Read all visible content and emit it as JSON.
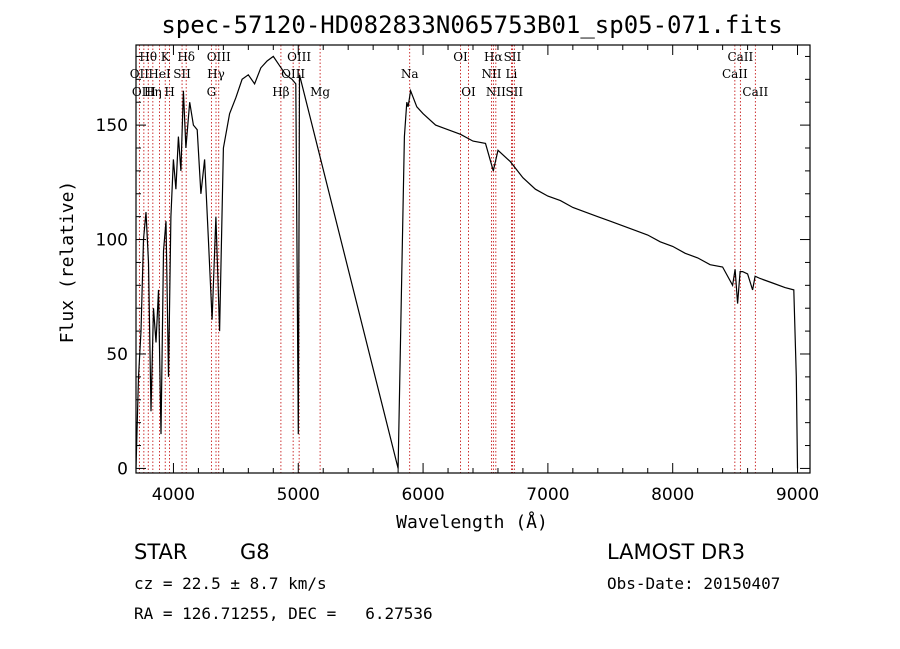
{
  "chart_data": {
    "type": "line",
    "title": "spec-57120-HD082833N065753B01_sp05-071.fits",
    "xlabel": "Wavelength (Å)",
    "ylabel": "Flux (relative)",
    "xlim": [
      3700,
      9100
    ],
    "ylim": [
      -2,
      185
    ],
    "xticks": [
      4000,
      5000,
      6000,
      7000,
      8000,
      9000
    ],
    "yticks": [
      0,
      50,
      100,
      150
    ],
    "spectrum": {
      "name": "flux",
      "x": [
        3700,
        3720,
        3740,
        3760,
        3780,
        3800,
        3820,
        3840,
        3860,
        3880,
        3900,
        3920,
        3940,
        3960,
        3980,
        4000,
        4020,
        4040,
        4060,
        4080,
        4100,
        4130,
        4160,
        4190,
        4220,
        4250,
        4280,
        4310,
        4340,
        4370,
        4400,
        4450,
        4500,
        4550,
        4600,
        4650,
        4700,
        4750,
        4800,
        4850,
        4900,
        4950,
        4980,
        5000,
        5010,
        5800,
        5830,
        5850,
        5870,
        5880,
        5900,
        5950,
        6000,
        6100,
        6200,
        6300,
        6400,
        6500,
        6563,
        6600,
        6700,
        6800,
        6900,
        7000,
        7100,
        7200,
        7300,
        7400,
        7500,
        7600,
        7700,
        7800,
        7900,
        8000,
        8100,
        8200,
        8300,
        8400,
        8480,
        8500,
        8520,
        8540,
        8560,
        8600,
        8640,
        8660,
        8700,
        8800,
        8900,
        8970,
        8990,
        9000
      ],
      "y": [
        0,
        40,
        60,
        100,
        112,
        90,
        25,
        70,
        55,
        78,
        15,
        95,
        108,
        40,
        110,
        135,
        122,
        145,
        130,
        165,
        140,
        160,
        150,
        148,
        120,
        135,
        100,
        65,
        110,
        60,
        140,
        155,
        162,
        170,
        172,
        168,
        175,
        178,
        180,
        176,
        172,
        170,
        168,
        15,
        172,
        0,
        88,
        145,
        160,
        158,
        165,
        158,
        155,
        150,
        148,
        146,
        143,
        142,
        130,
        139,
        134,
        127,
        122,
        119,
        117,
        114,
        112,
        110,
        108,
        106,
        104,
        102,
        99,
        97,
        94,
        92,
        89,
        88,
        80,
        87,
        72,
        86,
        86,
        85,
        78,
        84,
        83,
        81,
        79,
        78,
        40,
        0
      ]
    },
    "line_markers": [
      {
        "label": "Hθ",
        "x": 3798,
        "row": 0
      },
      {
        "label": "OII",
        "x": 3727,
        "row": 1
      },
      {
        "label": "OIII",
        "x": 3763,
        "row": 2
      },
      {
        "label": "K",
        "x": 3934,
        "row": 0
      },
      {
        "label": "HeI",
        "x": 3889,
        "row": 1
      },
      {
        "label": "Hη",
        "x": 3835,
        "row": 2
      },
      {
        "label": "SII",
        "x": 4069,
        "row": 1
      },
      {
        "label": "H",
        "x": 3969,
        "row": 2
      },
      {
        "label": "Hδ",
        "x": 4102,
        "row": 0
      },
      {
        "label": "OIII",
        "x": 4363,
        "row": 0
      },
      {
        "label": "Hγ",
        "x": 4341,
        "row": 1
      },
      {
        "label": "G",
        "x": 4304,
        "row": 2
      },
      {
        "label": "OIII",
        "x": 5007,
        "row": 0
      },
      {
        "label": "OIII",
        "x": 4959,
        "row": 1
      },
      {
        "label": "Hβ",
        "x": 4861,
        "row": 2
      },
      {
        "label": "Mg",
        "x": 5175,
        "row": 2
      },
      {
        "label": "Na",
        "x": 5893,
        "row": 1
      },
      {
        "label": "OI",
        "x": 6300,
        "row": 0
      },
      {
        "label": "OI",
        "x": 6364,
        "row": 2
      },
      {
        "label": "Hα",
        "x": 6563,
        "row": 0
      },
      {
        "label": "SII",
        "x": 6716,
        "row": 0
      },
      {
        "label": "NII",
        "x": 6548,
        "row": 1
      },
      {
        "label": "Li",
        "x": 6708,
        "row": 1
      },
      {
        "label": "NII",
        "x": 6583,
        "row": 2
      },
      {
        "label": "SII",
        "x": 6731,
        "row": 2
      },
      {
        "label": "CaII",
        "x": 8542,
        "row": 0
      },
      {
        "label": "CaII",
        "x": 8498,
        "row": 1
      },
      {
        "label": "CaII",
        "x": 8662,
        "row": 2
      }
    ],
    "colors": {
      "spectrum": "#000000",
      "markers": "#c00000",
      "axes": "#000000"
    }
  },
  "info": {
    "object_class": "STAR",
    "subclass": "G8",
    "survey": "LAMOST DR3",
    "redshift": "cz = 22.5 ± 8.7 km/s",
    "obs_date": "Obs-Date: 20150407",
    "coords": "RA = 126.71255, DEC =   6.27536"
  }
}
